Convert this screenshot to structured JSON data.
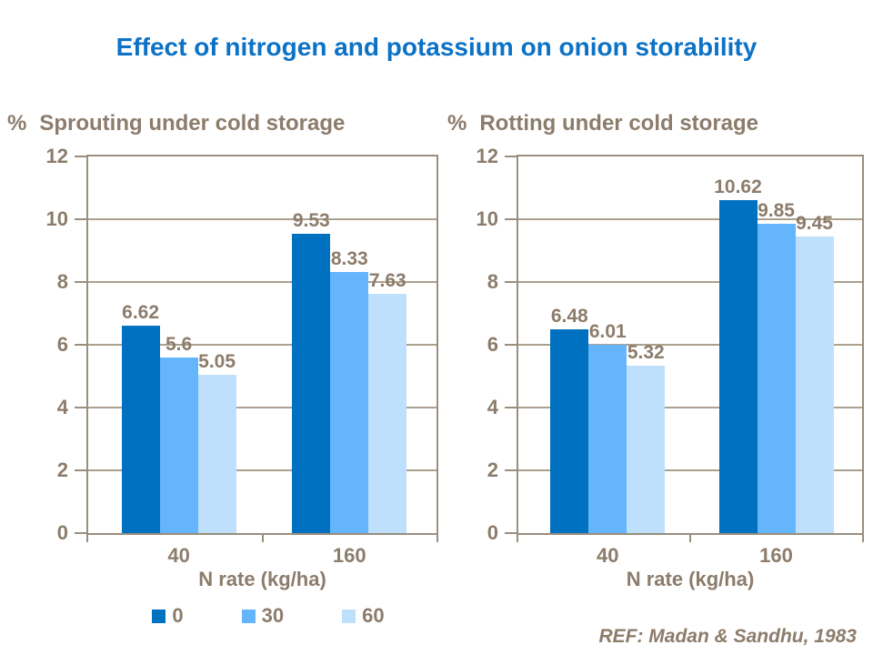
{
  "title": "Effect of nitrogen and potassium on onion storability",
  "colors": {
    "title": "#0C72C6",
    "text": "#8C7C6B",
    "axis": "#9A8E7E",
    "grid": "#ABA08E",
    "series": [
      "#0070C0",
      "#64B5FC",
      "#BFE0FC"
    ]
  },
  "legend": {
    "items": [
      "0",
      "30",
      "60"
    ]
  },
  "footer": {
    "ref": "REF: Madan & Sandhu, 1983"
  },
  "chart_data": [
    {
      "type": "bar",
      "title": "Sprouting under cold storage",
      "y_unit": "%",
      "xlabel": "N rate (kg/ha)",
      "categories": [
        "40",
        "160"
      ],
      "series": [
        {
          "name": "0",
          "values": [
            6.62,
            9.53
          ]
        },
        {
          "name": "30",
          "values": [
            5.6,
            8.33
          ]
        },
        {
          "name": "60",
          "values": [
            5.05,
            7.63
          ]
        }
      ],
      "ylim": [
        0,
        12
      ],
      "yticks": [
        0,
        2,
        4,
        6,
        8,
        10,
        12
      ],
      "grid": true,
      "legend_position": "bottom"
    },
    {
      "type": "bar",
      "title": "Rotting under cold storage",
      "y_unit": "%",
      "xlabel": "N rate (kg/ha)",
      "categories": [
        "40",
        "160"
      ],
      "series": [
        {
          "name": "0",
          "values": [
            6.48,
            10.62
          ]
        },
        {
          "name": "30",
          "values": [
            6.01,
            9.85
          ]
        },
        {
          "name": "60",
          "values": [
            5.32,
            9.45
          ]
        }
      ],
      "ylim": [
        0,
        12
      ],
      "yticks": [
        0,
        2,
        4,
        6,
        8,
        10,
        12
      ],
      "grid": true,
      "legend_position": "none"
    }
  ]
}
